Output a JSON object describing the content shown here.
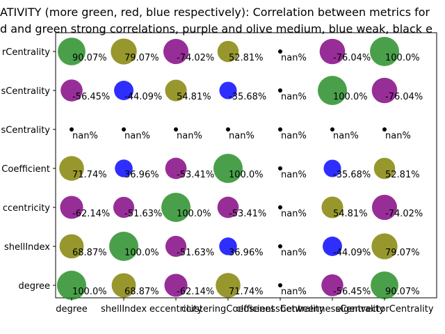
{
  "title_lines": [
    "ATIVITY (more green, red, blue respectively): Correlation between metrics for",
    "d and green strong correlations, purple and olive medium, blue weak, black e"
  ],
  "chart_data": {
    "type": "scatter",
    "subtype": "bubble-correlation-matrix",
    "x_categories": [
      "degree",
      "shellIndex",
      "eccentricity",
      "clusteringCoefficient",
      "closenessCentrality",
      "betweennessCentrality",
      "eigenvectorCentrality"
    ],
    "y_categories": [
      "degree",
      "shellIndex",
      "eccentricity",
      "clusteringCoefficient",
      "closenessCentrality",
      "betweennessCentrality",
      "eigenvectorCentrality"
    ],
    "y_tick_labels_visible": [
      "degree",
      "shellIndex",
      "ccentricity",
      "Coefficient",
      "sCentrality",
      "sCentrality",
      "rCentrality"
    ],
    "x_tick_labels_visible": [
      "degree",
      "shellIndex",
      "eccentricity",
      "clusteringCoefficient",
      "closenessCentrality",
      "betweennessCentrality",
      "eigenvectorCentrality"
    ],
    "colors": {
      "strong": "#228b22",
      "medium_purple": "#800080",
      "medium_olive": "#808000",
      "weak": "#0000ff",
      "nan": "#000000"
    },
    "cells": [
      {
        "x": "degree",
        "y": "degree",
        "value": 100.0,
        "label": "100.0%",
        "color": "strong"
      },
      {
        "x": "shellIndex",
        "y": "degree",
        "value": 68.87,
        "label": "68.87%",
        "color": "medium_olive"
      },
      {
        "x": "eccentricity",
        "y": "degree",
        "value": -62.14,
        "label": "-62.14%",
        "color": "medium_purple"
      },
      {
        "x": "clusteringCoefficient",
        "y": "degree",
        "value": 71.74,
        "label": "71.74%",
        "color": "medium_olive"
      },
      {
        "x": "closenessCentrality",
        "y": "degree",
        "value": null,
        "label": "nan%",
        "color": "nan"
      },
      {
        "x": "betweennessCentrality",
        "y": "degree",
        "value": -56.45,
        "label": "-56.45%",
        "color": "medium_purple"
      },
      {
        "x": "eigenvectorCentrality",
        "y": "degree",
        "value": 90.07,
        "label": "90.07%",
        "color": "strong"
      },
      {
        "x": "degree",
        "y": "shellIndex",
        "value": 68.87,
        "label": "68.87%",
        "color": "medium_olive"
      },
      {
        "x": "shellIndex",
        "y": "shellIndex",
        "value": 100.0,
        "label": "100.0%",
        "color": "strong"
      },
      {
        "x": "eccentricity",
        "y": "shellIndex",
        "value": -51.63,
        "label": "-51.63%",
        "color": "medium_purple"
      },
      {
        "x": "clusteringCoefficient",
        "y": "shellIndex",
        "value": 36.96,
        "label": "36.96%",
        "color": "weak"
      },
      {
        "x": "closenessCentrality",
        "y": "shellIndex",
        "value": null,
        "label": "nan%",
        "color": "nan"
      },
      {
        "x": "betweennessCentrality",
        "y": "shellIndex",
        "value": -44.09,
        "label": "-44.09%",
        "color": "weak"
      },
      {
        "x": "eigenvectorCentrality",
        "y": "shellIndex",
        "value": 79.07,
        "label": "79.07%",
        "color": "medium_olive"
      },
      {
        "x": "degree",
        "y": "eccentricity",
        "value": -62.14,
        "label": "-62.14%",
        "color": "medium_purple"
      },
      {
        "x": "shellIndex",
        "y": "eccentricity",
        "value": -51.63,
        "label": "-51.63%",
        "color": "medium_purple"
      },
      {
        "x": "eccentricity",
        "y": "eccentricity",
        "value": 100.0,
        "label": "100.0%",
        "color": "strong"
      },
      {
        "x": "clusteringCoefficient",
        "y": "eccentricity",
        "value": -53.41,
        "label": "-53.41%",
        "color": "medium_purple"
      },
      {
        "x": "closenessCentrality",
        "y": "eccentricity",
        "value": null,
        "label": "nan%",
        "color": "nan"
      },
      {
        "x": "betweennessCentrality",
        "y": "eccentricity",
        "value": 54.81,
        "label": "54.81%",
        "color": "medium_olive"
      },
      {
        "x": "eigenvectorCentrality",
        "y": "eccentricity",
        "value": -74.02,
        "label": "-74.02%",
        "color": "medium_purple"
      },
      {
        "x": "degree",
        "y": "clusteringCoefficient",
        "value": 71.74,
        "label": "71.74%",
        "color": "medium_olive"
      },
      {
        "x": "shellIndex",
        "y": "clusteringCoefficient",
        "value": 36.96,
        "label": "36.96%",
        "color": "weak"
      },
      {
        "x": "eccentricity",
        "y": "clusteringCoefficient",
        "value": -53.41,
        "label": "-53.41%",
        "color": "medium_purple"
      },
      {
        "x": "clusteringCoefficient",
        "y": "clusteringCoefficient",
        "value": 100.0,
        "label": "100.0%",
        "color": "strong"
      },
      {
        "x": "closenessCentrality",
        "y": "clusteringCoefficient",
        "value": null,
        "label": "nan%",
        "color": "nan"
      },
      {
        "x": "betweennessCentrality",
        "y": "clusteringCoefficient",
        "value": -35.68,
        "label": "-35.68%",
        "color": "weak"
      },
      {
        "x": "eigenvectorCentrality",
        "y": "clusteringCoefficient",
        "value": 52.81,
        "label": "52.81%",
        "color": "medium_olive"
      },
      {
        "x": "degree",
        "y": "closenessCentrality",
        "value": null,
        "label": "nan%",
        "color": "nan"
      },
      {
        "x": "shellIndex",
        "y": "closenessCentrality",
        "value": null,
        "label": "nan%",
        "color": "nan"
      },
      {
        "x": "eccentricity",
        "y": "closenessCentrality",
        "value": null,
        "label": "nan%",
        "color": "nan"
      },
      {
        "x": "clusteringCoefficient",
        "y": "closenessCentrality",
        "value": null,
        "label": "nan%",
        "color": "nan"
      },
      {
        "x": "closenessCentrality",
        "y": "closenessCentrality",
        "value": null,
        "label": "nan%",
        "color": "nan"
      },
      {
        "x": "betweennessCentrality",
        "y": "closenessCentrality",
        "value": null,
        "label": "nan%",
        "color": "nan"
      },
      {
        "x": "eigenvectorCentrality",
        "y": "closenessCentrality",
        "value": null,
        "label": "nan%",
        "color": "nan"
      },
      {
        "x": "degree",
        "y": "betweennessCentrality",
        "value": -56.45,
        "label": "-56.45%",
        "color": "medium_purple"
      },
      {
        "x": "shellIndex",
        "y": "betweennessCentrality",
        "value": -44.09,
        "label": "-44.09%",
        "color": "weak"
      },
      {
        "x": "eccentricity",
        "y": "betweennessCentrality",
        "value": 54.81,
        "label": "54.81%",
        "color": "medium_olive"
      },
      {
        "x": "clusteringCoefficient",
        "y": "betweennessCentrality",
        "value": -35.68,
        "label": "-35.68%",
        "color": "weak"
      },
      {
        "x": "closenessCentrality",
        "y": "betweennessCentrality",
        "value": null,
        "label": "nan%",
        "color": "nan"
      },
      {
        "x": "betweennessCentrality",
        "y": "betweennessCentrality",
        "value": 100.0,
        "label": "100.0%",
        "color": "strong"
      },
      {
        "x": "eigenvectorCentrality",
        "y": "betweennessCentrality",
        "value": -76.04,
        "label": "-76.04%",
        "color": "medium_purple"
      },
      {
        "x": "degree",
        "y": "eigenvectorCentrality",
        "value": 90.07,
        "label": "90.07%",
        "color": "strong"
      },
      {
        "x": "shellIndex",
        "y": "eigenvectorCentrality",
        "value": 79.07,
        "label": "79.07%",
        "color": "medium_olive"
      },
      {
        "x": "eccentricity",
        "y": "eigenvectorCentrality",
        "value": -74.02,
        "label": "-74.02%",
        "color": "medium_purple"
      },
      {
        "x": "clusteringCoefficient",
        "y": "eigenvectorCentrality",
        "value": 52.81,
        "label": "52.81%",
        "color": "medium_olive"
      },
      {
        "x": "closenessCentrality",
        "y": "eigenvectorCentrality",
        "value": null,
        "label": "nan%",
        "color": "nan"
      },
      {
        "x": "betweennessCentrality",
        "y": "eigenvectorCentrality",
        "value": -76.04,
        "label": "-76.04%",
        "color": "medium_purple"
      },
      {
        "x": "eigenvectorCentrality",
        "y": "eigenvectorCentrality",
        "value": 100.0,
        "label": "100.0%",
        "color": "strong"
      }
    ],
    "grid": false,
    "legend": "none"
  }
}
